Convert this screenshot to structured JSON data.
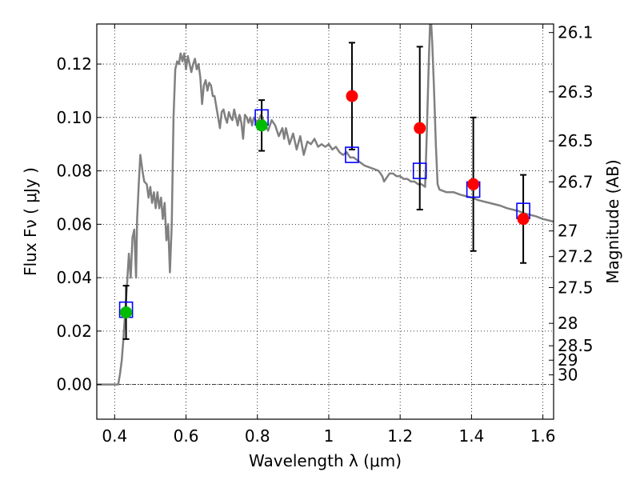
{
  "chart_data": {
    "type": "scatter",
    "xlabel": "Wavelength  λ (μm)",
    "ylabel": "Flux  Fν  ( μJy )",
    "y2label": "Magnitude (AB)",
    "xlim": [
      0.35,
      1.63
    ],
    "ylim": [
      -0.013,
      0.135
    ],
    "x_ticks": [
      0.4,
      0.6,
      0.8,
      1.0,
      1.2,
      1.4,
      1.6
    ],
    "x_tick_labels": [
      "0.4",
      "0.6",
      "0.8",
      "1",
      "1.2",
      "1.4",
      "1.6"
    ],
    "y_ticks": [
      0.0,
      0.02,
      0.04,
      0.06,
      0.08,
      0.1,
      0.12
    ],
    "y_tick_labels": [
      "0.00",
      "0.02",
      "0.04",
      "0.06",
      "0.08",
      "0.10",
      "0.12"
    ],
    "mag_ticks": [
      {
        "label": "26.1",
        "flux": 0.1318
      },
      {
        "label": "26.3",
        "flux": 0.1096
      },
      {
        "label": "26.5",
        "flux": 0.0912
      },
      {
        "label": "26.7",
        "flux": 0.0759
      },
      {
        "label": "27",
        "flux": 0.0575
      },
      {
        "label": "27.2",
        "flux": 0.0479
      },
      {
        "label": "27.5",
        "flux": 0.0363
      },
      {
        "label": "28",
        "flux": 0.0229
      },
      {
        "label": "28.5",
        "flux": 0.0145
      },
      {
        "label": "29",
        "flux": 0.0091
      },
      {
        "label": "30",
        "flux": 0.0036
      }
    ],
    "grid": true,
    "colors": {
      "model": "#808080",
      "model_photometry": "#0000ff",
      "observed_detection": "#00bb00",
      "observed_other": "#ff0000",
      "errorbar": "#000000"
    },
    "series": [
      {
        "kind": "line",
        "points": [
          [
            0.35,
            0.0
          ],
          [
            0.41,
            0.0
          ],
          [
            0.415,
            0.004
          ],
          [
            0.42,
            0.009
          ],
          [
            0.425,
            0.018
          ],
          [
            0.43,
            0.028
          ],
          [
            0.435,
            0.038
          ],
          [
            0.44,
            0.049
          ],
          [
            0.445,
            0.04
          ],
          [
            0.45,
            0.055
          ],
          [
            0.455,
            0.058
          ],
          [
            0.46,
            0.04
          ],
          [
            0.463,
            0.062
          ],
          [
            0.468,
            0.076
          ],
          [
            0.472,
            0.086
          ],
          [
            0.478,
            0.08
          ],
          [
            0.483,
            0.076
          ],
          [
            0.49,
            0.075
          ],
          [
            0.495,
            0.07
          ],
          [
            0.5,
            0.074
          ],
          [
            0.505,
            0.068
          ],
          [
            0.51,
            0.072
          ],
          [
            0.515,
            0.066
          ],
          [
            0.52,
            0.072
          ],
          [
            0.525,
            0.066
          ],
          [
            0.53,
            0.07
          ],
          [
            0.535,
            0.062
          ],
          [
            0.54,
            0.068
          ],
          [
            0.545,
            0.054
          ],
          [
            0.55,
            0.06
          ],
          [
            0.555,
            0.042
          ],
          [
            0.56,
            0.06
          ],
          [
            0.565,
            0.1
          ],
          [
            0.57,
            0.118
          ],
          [
            0.575,
            0.121
          ],
          [
            0.58,
            0.12
          ],
          [
            0.585,
            0.124
          ],
          [
            0.59,
            0.121
          ],
          [
            0.595,
            0.124
          ],
          [
            0.6,
            0.118
          ],
          [
            0.605,
            0.123
          ],
          [
            0.61,
            0.12
          ],
          [
            0.615,
            0.117
          ],
          [
            0.62,
            0.12
          ],
          [
            0.625,
            0.122
          ],
          [
            0.63,
            0.118
          ],
          [
            0.635,
            0.12
          ],
          [
            0.64,
            0.115
          ],
          [
            0.645,
            0.105
          ],
          [
            0.65,
            0.112
          ],
          [
            0.655,
            0.114
          ],
          [
            0.66,
            0.11
          ],
          [
            0.665,
            0.113
          ],
          [
            0.67,
            0.112
          ],
          [
            0.675,
            0.108
          ],
          [
            0.68,
            0.108
          ],
          [
            0.685,
            0.104
          ],
          [
            0.69,
            0.1
          ],
          [
            0.695,
            0.096
          ],
          [
            0.7,
            0.102
          ],
          [
            0.705,
            0.103
          ],
          [
            0.71,
            0.1
          ],
          [
            0.715,
            0.098
          ],
          [
            0.72,
            0.102
          ],
          [
            0.725,
            0.1
          ],
          [
            0.73,
            0.099
          ],
          [
            0.735,
            0.103
          ],
          [
            0.74,
            0.1
          ],
          [
            0.745,
            0.097
          ],
          [
            0.75,
            0.101
          ],
          [
            0.755,
            0.098
          ],
          [
            0.76,
            0.092
          ],
          [
            0.765,
            0.101
          ],
          [
            0.77,
            0.1
          ],
          [
            0.775,
            0.098
          ],
          [
            0.78,
            0.1
          ],
          [
            0.785,
            0.097
          ],
          [
            0.79,
            0.1
          ],
          [
            0.8,
            0.098
          ],
          [
            0.81,
            0.101
          ],
          [
            0.82,
            0.098
          ],
          [
            0.83,
            0.095
          ],
          [
            0.84,
            0.099
          ],
          [
            0.85,
            0.097
          ],
          [
            0.86,
            0.093
          ],
          [
            0.87,
            0.096
          ],
          [
            0.875,
            0.092
          ],
          [
            0.88,
            0.096
          ],
          [
            0.89,
            0.09
          ],
          [
            0.9,
            0.094
          ],
          [
            0.91,
            0.088
          ],
          [
            0.92,
            0.093
          ],
          [
            0.93,
            0.086
          ],
          [
            0.94,
            0.091
          ],
          [
            0.95,
            0.09
          ],
          [
            0.96,
            0.092
          ],
          [
            0.97,
            0.089
          ],
          [
            0.98,
            0.09
          ],
          [
            0.99,
            0.089
          ],
          [
            1.0,
            0.09
          ],
          [
            1.01,
            0.088
          ],
          [
            1.02,
            0.089
          ],
          [
            1.03,
            0.087
          ],
          [
            1.04,
            0.086
          ],
          [
            1.05,
            0.087
          ],
          [
            1.06,
            0.085
          ],
          [
            1.07,
            0.085
          ],
          [
            1.08,
            0.084
          ],
          [
            1.09,
            0.083
          ],
          [
            1.1,
            0.082
          ],
          [
            1.12,
            0.081
          ],
          [
            1.14,
            0.08
          ],
          [
            1.15,
            0.078
          ],
          [
            1.155,
            0.076
          ],
          [
            1.16,
            0.077
          ],
          [
            1.17,
            0.079
          ],
          [
            1.18,
            0.079
          ],
          [
            1.19,
            0.078
          ],
          [
            1.2,
            0.078
          ],
          [
            1.21,
            0.077
          ],
          [
            1.22,
            0.077
          ],
          [
            1.23,
            0.076
          ],
          [
            1.24,
            0.076
          ],
          [
            1.25,
            0.075
          ],
          [
            1.26,
            0.075
          ],
          [
            1.27,
            0.074
          ],
          [
            1.275,
            0.095
          ],
          [
            1.28,
            0.12
          ],
          [
            1.285,
            0.14
          ],
          [
            1.29,
            0.128
          ],
          [
            1.295,
            0.11
          ],
          [
            1.3,
            0.09
          ],
          [
            1.305,
            0.075
          ],
          [
            1.31,
            0.073
          ],
          [
            1.33,
            0.072
          ],
          [
            1.35,
            0.072
          ],
          [
            1.37,
            0.071
          ],
          [
            1.4,
            0.07
          ],
          [
            1.42,
            0.069
          ],
          [
            1.45,
            0.068
          ],
          [
            1.48,
            0.067
          ],
          [
            1.5,
            0.066
          ],
          [
            1.53,
            0.065
          ],
          [
            1.55,
            0.064
          ],
          [
            1.58,
            0.063
          ],
          [
            1.6,
            0.062
          ],
          [
            1.63,
            0.061
          ]
        ]
      },
      {
        "kind": "square",
        "points": [
          [
            0.432,
            0.028
          ],
          [
            0.812,
            0.1
          ],
          [
            1.065,
            0.086
          ],
          [
            1.255,
            0.08
          ],
          [
            1.405,
            0.073
          ],
          [
            1.545,
            0.065
          ]
        ]
      },
      {
        "kind": "circle",
        "points": [
          {
            "x": 0.432,
            "y": 0.027,
            "err": 0.01,
            "color": "observed_detection"
          },
          {
            "x": 0.812,
            "y": 0.097,
            "err": 0.0095,
            "color": "observed_detection"
          },
          {
            "x": 1.065,
            "y": 0.108,
            "err": 0.02,
            "color": "observed_other"
          },
          {
            "x": 1.255,
            "y": 0.096,
            "err": 0.0305,
            "color": "observed_other"
          },
          {
            "x": 1.405,
            "y": 0.075,
            "err": 0.025,
            "color": "observed_other"
          },
          {
            "x": 1.545,
            "y": 0.062,
            "err": 0.0165,
            "color": "observed_other"
          }
        ]
      }
    ]
  }
}
